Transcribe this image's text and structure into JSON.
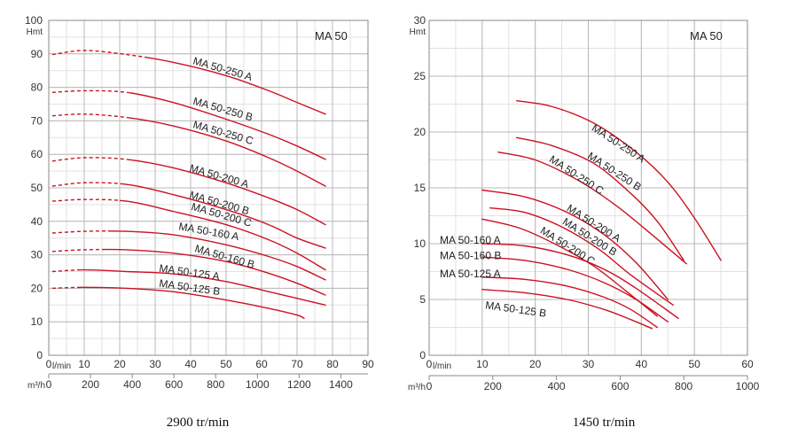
{
  "curve_color": "#cc1122",
  "chart_data": [
    {
      "type": "line",
      "title": "MA 50",
      "caption": "2900 tr/min",
      "y_unit": "Hmt",
      "x_unit": "l/min",
      "x2_unit": "m³/h",
      "xlim": [
        0,
        90
      ],
      "ylim": [
        0,
        100
      ],
      "x2lim": [
        0,
        1530
      ],
      "x_ticks": [
        0,
        10,
        20,
        30,
        40,
        50,
        60,
        70,
        80,
        90
      ],
      "x2_ticks": [
        0,
        200,
        400,
        600,
        800,
        1000,
        1200,
        1400
      ],
      "y_ticks": [
        0,
        10,
        20,
        30,
        40,
        50,
        60,
        70,
        80,
        90,
        100
      ],
      "x_tick_labels": [
        "0",
        "10",
        "20",
        "30",
        "40",
        "50",
        "60",
        "70",
        "80",
        "90"
      ],
      "x2_tick_labels": [
        "0",
        "200",
        "400",
        "600",
        "800",
        "1000",
        "1200",
        "1400"
      ],
      "y_tick_labels": [
        "0",
        "10",
        "20",
        "30",
        "40",
        "50",
        "60",
        "70",
        "80",
        "90",
        "100"
      ],
      "grid": true,
      "series": [
        {
          "name": "MA 50-250 A",
          "x": [
            1,
            10,
            22,
            35,
            50,
            62,
            70,
            78
          ],
          "y": [
            89.8,
            91,
            89.8,
            87.5,
            83.5,
            79,
            75.5,
            72
          ],
          "dashed_to_x": 27,
          "label_xy": [
            40.5,
            87
          ]
        },
        {
          "name": "MA 50-250 B",
          "x": [
            1,
            10,
            22,
            35,
            50,
            62,
            70,
            78
          ],
          "y": [
            78.5,
            79,
            78.5,
            75.5,
            70.5,
            66,
            62.5,
            58.5
          ],
          "dashed_to_x": 23,
          "label_xy": [
            40.5,
            75
          ]
        },
        {
          "name": "MA 50-250 C",
          "x": [
            1,
            10,
            22,
            35,
            50,
            62,
            70,
            78
          ],
          "y": [
            71.5,
            72,
            71,
            68.5,
            64,
            59,
            55,
            50.5
          ],
          "dashed_to_x": 22,
          "label_xy": [
            40.5,
            68
          ]
        },
        {
          "name": "MA 50-200 A",
          "x": [
            1,
            10,
            22,
            35,
            50,
            62,
            70,
            78
          ],
          "y": [
            58,
            59,
            58.5,
            56,
            51.5,
            47,
            43.5,
            39
          ],
          "dashed_to_x": 22,
          "label_xy": [
            39.5,
            55
          ]
        },
        {
          "name": "MA 50-200 B",
          "x": [
            1,
            10,
            22,
            35,
            50,
            62,
            70,
            78
          ],
          "y": [
            50.5,
            51.5,
            51,
            48,
            43.5,
            39,
            35,
            32
          ],
          "dashed_to_x": 21,
          "label_xy": [
            39.5,
            47
          ]
        },
        {
          "name": "MA 50-200 C",
          "x": [
            1,
            10,
            22,
            35,
            50,
            62,
            70,
            78
          ],
          "y": [
            46,
            46.5,
            46,
            43,
            39,
            34.5,
            30.5,
            25.5
          ],
          "dashed_to_x": 20,
          "label_xy": [
            40,
            43.5
          ]
        },
        {
          "name": "MA 50-160 A",
          "x": [
            1,
            10,
            22,
            35,
            50,
            62,
            70,
            78
          ],
          "y": [
            36.5,
            37,
            37,
            36,
            33,
            29.5,
            26.5,
            22.5
          ],
          "dashed_to_x": 17,
          "label_xy": [
            36.5,
            37.5
          ]
        },
        {
          "name": "MA 50-160 B",
          "x": [
            1,
            10,
            22,
            35,
            50,
            62,
            70,
            78
          ],
          "y": [
            31,
            31.5,
            31.5,
            30.5,
            28,
            24.5,
            21.5,
            18
          ],
          "dashed_to_x": 16,
          "label_xy": [
            41,
            31
          ]
        },
        {
          "name": "MA 50-125 A",
          "x": [
            1,
            10,
            22,
            35,
            50,
            62,
            70,
            78
          ],
          "y": [
            25,
            25.5,
            25,
            24.3,
            22,
            19,
            17,
            15
          ],
          "dashed_to_x": 9,
          "label_xy": [
            31,
            25
          ]
        },
        {
          "name": "MA 50-125 B",
          "x": [
            1,
            10,
            22,
            35,
            50,
            62,
            70,
            72
          ],
          "y": [
            20,
            20.3,
            20,
            19,
            16.5,
            14,
            12,
            11
          ],
          "dashed_to_x": 9,
          "label_xy": [
            31,
            20.5
          ]
        }
      ]
    },
    {
      "type": "line",
      "title": "MA 50",
      "caption": "1450 tr/min",
      "y_unit": "Hmt",
      "x_unit": "l/min",
      "x2_unit": "m³/h",
      "xlim": [
        0,
        60
      ],
      "ylim": [
        0,
        30
      ],
      "x2lim": [
        0,
        1000
      ],
      "x_ticks": [
        0,
        10,
        20,
        30,
        40,
        50,
        60
      ],
      "x2_ticks": [
        0,
        200,
        400,
        600,
        800,
        1000
      ],
      "y_ticks": [
        0,
        5,
        10,
        15,
        20,
        25,
        30
      ],
      "x_tick_labels": [
        "0",
        "10",
        "20",
        "30",
        "40",
        "50",
        "60"
      ],
      "x2_tick_labels": [
        "0",
        "200",
        "400",
        "600",
        "800",
        "1000"
      ],
      "y_tick_labels": [
        "0",
        "5",
        "10",
        "15",
        "20",
        "25",
        "30"
      ],
      "grid": true,
      "series": [
        {
          "name": "MA 50-250 A",
          "x": [
            16.5,
            23,
            31,
            39,
            45,
            50,
            55
          ],
          "y": [
            22.8,
            22.3,
            20.8,
            18.2,
            15.5,
            12.3,
            8.5
          ],
          "dashed_to_x": 0,
          "label_xy": [
            30.5,
            20.2
          ]
        },
        {
          "name": "MA 50-250 B",
          "x": [
            16.5,
            23,
            31,
            38,
            43,
            48
          ],
          "y": [
            19.5,
            18.8,
            17.2,
            14.5,
            12,
            8.5
          ],
          "dashed_to_x": 0,
          "label_xy": [
            29.7,
            17.7
          ]
        },
        {
          "name": "MA 50-250 C",
          "x": [
            13,
            20,
            28,
            35,
            41,
            48.5
          ],
          "y": [
            18.2,
            17.5,
            15.7,
            13.5,
            11.2,
            8.2
          ],
          "dashed_to_x": 0,
          "label_xy": [
            22.5,
            17.4
          ]
        },
        {
          "name": "MA 50-200 A",
          "x": [
            10,
            18,
            26,
            33,
            39,
            45
          ],
          "y": [
            14.8,
            14.2,
            12.8,
            10.8,
            8.3,
            5
          ],
          "dashed_to_x": 0,
          "label_xy": [
            25.8,
            13
          ]
        },
        {
          "name": "MA 50-200 B",
          "x": [
            11.5,
            18,
            25,
            32,
            38,
            46
          ],
          "y": [
            13.2,
            12.8,
            11.5,
            9.5,
            7.2,
            4.5
          ],
          "dashed_to_x": 0,
          "label_xy": [
            25,
            11.8
          ]
        },
        {
          "name": "MA 50-200 C",
          "x": [
            10,
            17,
            24,
            31,
            37,
            43
          ],
          "y": [
            12.2,
            11.4,
            9.9,
            8,
            5.8,
            3.5
          ],
          "dashed_to_x": 0,
          "label_xy": [
            20.8,
            11
          ]
        },
        {
          "name": "MA 50-160 A",
          "x": [
            10,
            18,
            26,
            33,
            39,
            47
          ],
          "y": [
            10,
            9.8,
            9,
            7.7,
            6,
            3.3
          ],
          "dashed_to_x": 0,
          "label_xy": [
            2,
            10
          ]
        },
        {
          "name": "MA 50-160 B",
          "x": [
            10,
            18,
            26,
            33,
            39,
            45
          ],
          "y": [
            8.8,
            8.5,
            7.7,
            6.5,
            5,
            3
          ],
          "dashed_to_x": 0,
          "label_xy": [
            2,
            8.6
          ]
        },
        {
          "name": "MA 50-125 A",
          "x": [
            10,
            18,
            26,
            33,
            38,
            43
          ],
          "y": [
            7,
            6.8,
            6.2,
            5.2,
            4.1,
            2.5
          ],
          "dashed_to_x": 0,
          "label_xy": [
            2,
            7
          ]
        },
        {
          "name": "MA 50-125 B",
          "x": [
            10,
            18,
            26,
            33,
            38,
            42
          ],
          "y": [
            5.9,
            5.6,
            5,
            4.1,
            3.2,
            2.4
          ],
          "dashed_to_x": 0,
          "label_xy": [
            10.5,
            4.2
          ]
        }
      ]
    }
  ]
}
